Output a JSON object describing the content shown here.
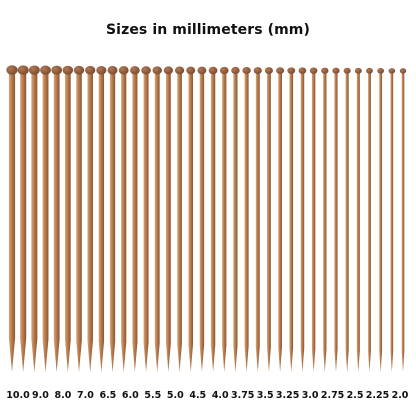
{
  "title": "Sizes in millimeters (mm)",
  "needle_count": 36,
  "size_labels": [
    "10.0",
    "9.0",
    "8.0",
    "7.0",
    "6.5",
    "6.0",
    "5.5",
    "5.0",
    "4.5",
    "4.0",
    "3.75",
    "3.5",
    "3.25",
    "3.0",
    "2.75",
    "2.5",
    "2.25",
    "2.0"
  ],
  "colors": {
    "wood_light": "#d9a679",
    "wood_mid": "#b97c4d",
    "wood_dark": "#8a5534",
    "knob": "#7a4a2e",
    "background": "#ffffff",
    "text": "#111111"
  }
}
